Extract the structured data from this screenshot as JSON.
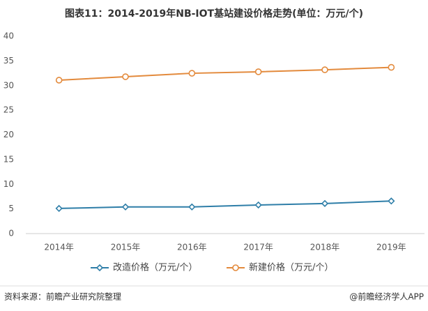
{
  "chart_data": {
    "type": "line",
    "title": "图表11：2014-2019年NB-IOT基站建设价格走势(单位：万元/个)",
    "categories": [
      "2014年",
      "2015年",
      "2016年",
      "2017年",
      "2018年",
      "2019年"
    ],
    "series": [
      {
        "name": "改造价格（万元/个）",
        "color": "#2e7ea8",
        "marker": "diamond",
        "values": [
          5.1,
          5.4,
          5.4,
          5.8,
          6.1,
          6.6
        ]
      },
      {
        "name": "新建价格（万元/个）",
        "color": "#e38a3c",
        "marker": "circle",
        "values": [
          31.1,
          31.8,
          32.5,
          32.8,
          33.2,
          33.7
        ]
      }
    ],
    "ylim": [
      0,
      40
    ],
    "yticks": [
      0,
      5,
      10,
      15,
      20,
      25,
      30,
      35,
      40
    ],
    "grid": false,
    "legend": "bottom",
    "source": "资料来源：前瞻产业研究院整理",
    "credit": "@前瞻经济学人APP"
  }
}
